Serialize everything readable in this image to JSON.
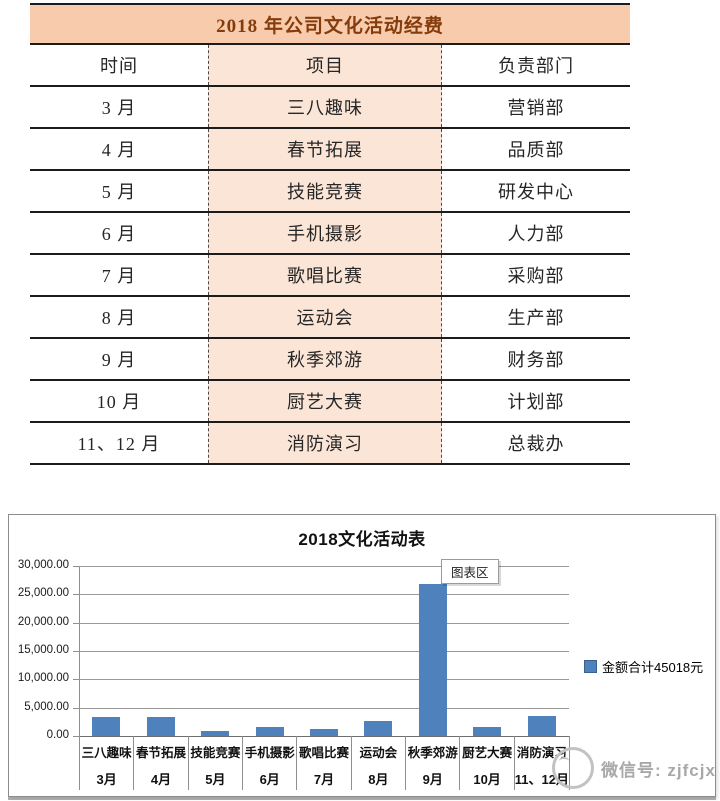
{
  "table": {
    "title": "2018 年公司文化活动经费",
    "headers": [
      "时间",
      "项目",
      "负责部门"
    ],
    "rows": [
      [
        "3 月",
        "三八趣味",
        "营销部"
      ],
      [
        "4 月",
        "春节拓展",
        "品质部"
      ],
      [
        "5 月",
        "技能竞赛",
        "研发中心"
      ],
      [
        "6 月",
        "手机摄影",
        "人力部"
      ],
      [
        "7 月",
        "歌唱比赛",
        "采购部"
      ],
      [
        "8 月",
        "运动会",
        "生产部"
      ],
      [
        "9 月",
        "秋季郊游",
        "财务部"
      ],
      [
        "10 月",
        "厨艺大赛",
        "计划部"
      ],
      [
        "11、12 月",
        "消防演习",
        "总裁办"
      ]
    ]
  },
  "chart": {
    "title": "2018文化活动表",
    "tooltip": "图表区",
    "legend_label": "金额合计45018元",
    "watermark": "微信号: zjfcjx"
  },
  "chart_data": {
    "type": "bar",
    "title": "2018文化活动表",
    "categories": [
      "三八趣味",
      "春节拓展",
      "技能竞赛",
      "手机摄影",
      "歌唱比赛",
      "运动会",
      "秋季郊游",
      "厨艺大赛",
      "消防演习"
    ],
    "months": [
      "3月",
      "4月",
      "5月",
      "6月",
      "7月",
      "8月",
      "9月",
      "10月",
      "11、12月"
    ],
    "values": [
      3400,
      3300,
      900,
      1600,
      1250,
      2650,
      26768,
      1600,
      3550
    ],
    "values_note": "estimated from bar heights; legend states total = 45018",
    "legend": [
      "金额合计45018元"
    ],
    "legend_position": "right",
    "ylim": [
      0,
      30000
    ],
    "ytick_labels": [
      "30,000.00",
      "25,000.00",
      "20,000.00",
      "15,000.00",
      "10,000.00",
      "5,000.00",
      "0.00"
    ],
    "grid": true,
    "bar_color": "#4f81bd",
    "accent_colors": {
      "table_title_bg": "#f8cbad",
      "table_mid_col_bg": "#fbe5d6",
      "table_title_text": "#843c0c"
    }
  }
}
